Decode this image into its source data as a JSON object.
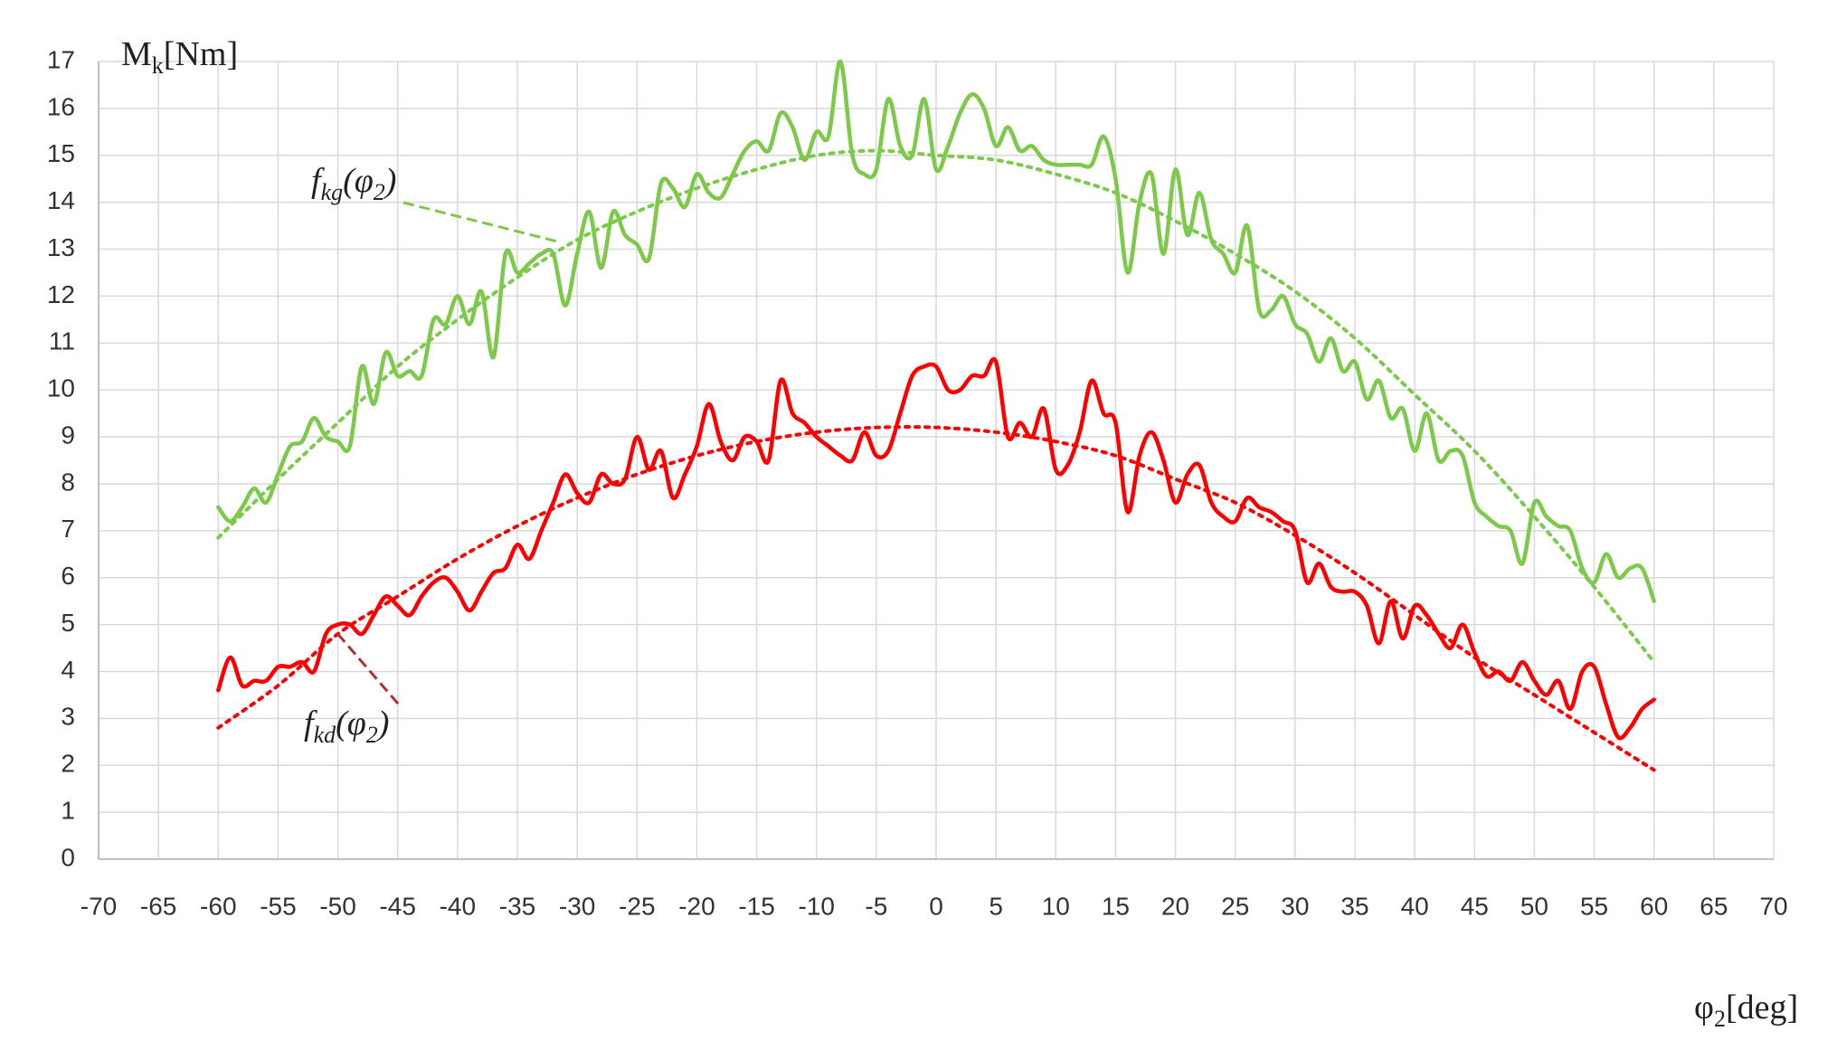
{
  "chart_data": {
    "type": "line",
    "ylabel": [
      "M",
      "k",
      "[Nm]"
    ],
    "xlabel": [
      "φ",
      "2",
      "[deg]"
    ],
    "annotations": [
      {
        "parts": [
          "f",
          "kg",
          "(φ",
          "2",
          ")"
        ],
        "color": "#7dc94a"
      },
      {
        "parts": [
          "f",
          "kd",
          "(φ",
          "2",
          ")"
        ],
        "color": "#b03030"
      }
    ],
    "xlim": [
      -70,
      70
    ],
    "xticks": [
      -70,
      -65,
      -60,
      -55,
      -50,
      -45,
      -40,
      -35,
      -30,
      -25,
      -20,
      -15,
      -10,
      -5,
      0,
      5,
      10,
      15,
      20,
      25,
      30,
      35,
      40,
      45,
      50,
      55,
      60,
      65,
      70
    ],
    "ylim": [
      0,
      17
    ],
    "yticks": [
      0,
      1,
      2,
      3,
      4,
      5,
      6,
      7,
      8,
      9,
      10,
      11,
      12,
      13,
      14,
      15,
      16,
      17
    ],
    "grid": true,
    "series": [
      {
        "color": "#7dc94a",
        "style": "solid",
        "x": [
          -60,
          -59,
          -58,
          -57,
          -56,
          -55,
          -54,
          -53,
          -52,
          -51,
          -50,
          -49,
          -48,
          -47,
          -46,
          -45,
          -44,
          -43,
          -42,
          -41,
          -40,
          -39,
          -38,
          -37,
          -36,
          -35,
          -34,
          -33,
          -32,
          -31,
          -30,
          -29,
          -28,
          -27,
          -26,
          -25,
          -24,
          -23,
          -22,
          -21,
          -20,
          -19,
          -18,
          -17,
          -16,
          -15,
          -14,
          -13,
          -12,
          -11,
          -10,
          -9,
          -8,
          -7,
          -6,
          -5,
          -4,
          -3,
          -2,
          -1,
          0,
          1,
          2,
          3,
          4,
          5,
          6,
          7,
          8,
          9,
          10,
          11,
          12,
          13,
          14,
          15,
          16,
          17,
          18,
          19,
          20,
          21,
          22,
          23,
          24,
          25,
          26,
          27,
          28,
          29,
          30,
          31,
          32,
          33,
          34,
          35,
          36,
          37,
          38,
          39,
          40,
          41,
          42,
          43,
          44,
          45,
          46,
          47,
          48,
          49,
          50,
          51,
          52,
          53,
          54,
          55,
          56,
          57,
          58,
          59,
          60
        ],
        "values": [
          7.5,
          7.2,
          7.5,
          7.9,
          7.6,
          8.2,
          8.8,
          8.9,
          9.4,
          9.0,
          8.9,
          8.8,
          10.5,
          9.7,
          10.8,
          10.3,
          10.4,
          10.3,
          11.5,
          11.4,
          12.0,
          11.4,
          12.1,
          10.7,
          12.9,
          12.5,
          12.7,
          12.9,
          12.9,
          11.8,
          12.9,
          13.8,
          12.6,
          13.8,
          13.3,
          13.1,
          12.8,
          14.4,
          14.3,
          13.9,
          14.6,
          14.2,
          14.1,
          14.6,
          15.1,
          15.3,
          15.1,
          15.9,
          15.6,
          14.9,
          15.5,
          15.4,
          17.0,
          15.0,
          14.6,
          14.7,
          16.2,
          15.2,
          15.0,
          16.2,
          14.7,
          15.2,
          15.9,
          16.3,
          16.0,
          15.2,
          15.6,
          15.1,
          15.2,
          14.9,
          14.8,
          14.8,
          14.8,
          14.8,
          15.4,
          14.5,
          12.5,
          14.0,
          14.6,
          12.9,
          14.7,
          13.3,
          14.2,
          13.2,
          12.9,
          12.5,
          13.5,
          11.7,
          11.7,
          12.0,
          11.4,
          11.2,
          10.6,
          11.1,
          10.4,
          10.6,
          9.8,
          10.2,
          9.4,
          9.6,
          8.7,
          9.5,
          8.5,
          8.7,
          8.6,
          7.6,
          7.3,
          7.1,
          7.0,
          6.3,
          7.6,
          7.3,
          7.1,
          7.0,
          6.2,
          5.9,
          6.5,
          6.0,
          6.2,
          6.2,
          5.5
        ]
      },
      {
        "color": "#ff0000",
        "style": "solid",
        "x": [
          -60,
          -59,
          -58,
          -57,
          -56,
          -55,
          -54,
          -53,
          -52,
          -51,
          -50,
          -49,
          -48,
          -47,
          -46,
          -45,
          -44,
          -43,
          -42,
          -41,
          -40,
          -39,
          -38,
          -37,
          -36,
          -35,
          -34,
          -33,
          -32,
          -31,
          -30,
          -29,
          -28,
          -27,
          -26,
          -25,
          -24,
          -23,
          -22,
          -21,
          -20,
          -19,
          -18,
          -17,
          -16,
          -15,
          -14,
          -13,
          -12,
          -11,
          -10,
          -9,
          -8,
          -7,
          -6,
          -5,
          -4,
          -3,
          -2,
          -1,
          0,
          1,
          2,
          3,
          4,
          5,
          6,
          7,
          8,
          9,
          10,
          11,
          12,
          13,
          14,
          15,
          16,
          17,
          18,
          19,
          20,
          21,
          22,
          23,
          24,
          25,
          26,
          27,
          28,
          29,
          30,
          31,
          32,
          33,
          34,
          35,
          36,
          37,
          38,
          39,
          40,
          41,
          42,
          43,
          44,
          45,
          46,
          47,
          48,
          49,
          50,
          51,
          52,
          53,
          54,
          55,
          56,
          57,
          58,
          59,
          60
        ],
        "values": [
          3.6,
          4.3,
          3.7,
          3.8,
          3.8,
          4.1,
          4.1,
          4.2,
          4.0,
          4.8,
          5.0,
          5.0,
          4.8,
          5.2,
          5.6,
          5.4,
          5.2,
          5.6,
          5.9,
          6.0,
          5.7,
          5.3,
          5.7,
          6.1,
          6.2,
          6.7,
          6.4,
          7.0,
          7.6,
          8.2,
          7.8,
          7.6,
          8.2,
          8.0,
          8.1,
          9.0,
          8.3,
          8.7,
          7.7,
          8.2,
          8.8,
          9.7,
          8.9,
          8.5,
          9.0,
          8.9,
          8.5,
          10.2,
          9.5,
          9.3,
          9.0,
          8.8,
          8.6,
          8.5,
          9.1,
          8.6,
          8.7,
          9.5,
          10.3,
          10.5,
          10.5,
          10.0,
          10.0,
          10.3,
          10.3,
          10.6,
          9.0,
          9.3,
          9.0,
          9.6,
          8.3,
          8.4,
          9.1,
          10.2,
          9.5,
          9.3,
          7.4,
          8.6,
          9.1,
          8.5,
          7.6,
          8.2,
          8.4,
          7.6,
          7.3,
          7.2,
          7.7,
          7.5,
          7.4,
          7.2,
          7.0,
          5.9,
          6.3,
          5.8,
          5.7,
          5.7,
          5.4,
          4.6,
          5.5,
          4.7,
          5.4,
          5.2,
          4.8,
          4.5,
          5.0,
          4.4,
          3.9,
          4.0,
          3.8,
          4.2,
          3.8,
          3.5,
          3.8,
          3.2,
          4.0,
          4.1,
          3.3,
          2.6,
          2.8,
          3.2,
          3.4
        ]
      },
      {
        "color": "#7dc94a",
        "style": "dotted",
        "x": [
          -60,
          -55,
          -50,
          -45,
          -40,
          -35,
          -30,
          -25,
          -20,
          -15,
          -10,
          -5,
          0,
          5,
          10,
          15,
          20,
          25,
          30,
          35,
          40,
          45,
          50,
          55,
          60
        ],
        "values": [
          6.85,
          8.1,
          9.3,
          10.5,
          11.5,
          12.4,
          13.2,
          13.8,
          14.3,
          14.7,
          15.0,
          15.1,
          15.0,
          14.9,
          14.6,
          14.2,
          13.6,
          12.9,
          12.1,
          11.1,
          9.9,
          8.7,
          7.3,
          5.8,
          4.2
        ]
      },
      {
        "color": "#ff0000",
        "style": "dotted",
        "x": [
          -60,
          -55,
          -50,
          -45,
          -40,
          -35,
          -30,
          -25,
          -20,
          -15,
          -10,
          -5,
          0,
          5,
          10,
          15,
          20,
          25,
          30,
          35,
          40,
          45,
          50,
          55,
          60
        ],
        "values": [
          2.8,
          3.7,
          4.8,
          5.6,
          6.4,
          7.1,
          7.7,
          8.2,
          8.6,
          8.9,
          9.1,
          9.2,
          9.2,
          9.1,
          8.9,
          8.6,
          8.1,
          7.6,
          6.9,
          6.1,
          5.2,
          4.3,
          3.5,
          2.7,
          1.9
        ]
      }
    ]
  }
}
